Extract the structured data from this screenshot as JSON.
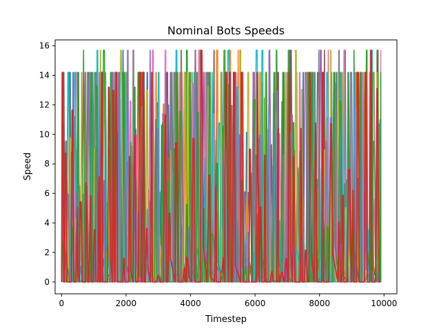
{
  "chart_data": {
    "type": "line",
    "title": "Nominal Bots Speeds",
    "xlabel": "Timestep",
    "ylabel": "Speed",
    "xlim": [
      -200,
      10400
    ],
    "ylim": [
      -0.8,
      16.4
    ],
    "x_ticks": [
      0,
      2000,
      4000,
      6000,
      8000,
      10000
    ],
    "y_ticks": [
      0,
      2,
      4,
      6,
      8,
      10,
      12,
      14,
      16
    ],
    "x_tick_labels": [
      "0",
      "2000",
      "4000",
      "6000",
      "8000",
      "10000"
    ],
    "y_tick_labels": [
      "0",
      "2",
      "4",
      "6",
      "8",
      "10",
      "12",
      "14",
      "16"
    ],
    "grid": false,
    "legend": "none",
    "x_range": [
      0,
      9900
    ],
    "speed_levels": [
      0,
      14.2,
      15.7
    ],
    "series": [
      {
        "color": "#1f77b4"
      },
      {
        "color": "#ff7f0e"
      },
      {
        "color": "#2ca02c"
      },
      {
        "color": "#8c564b"
      },
      {
        "color": "#e377c2"
      },
      {
        "color": "#7f7f7f"
      },
      {
        "color": "#bcbd22"
      },
      {
        "color": "#17becf"
      },
      {
        "color": "#9467bd"
      },
      {
        "color": "#2ca02c"
      },
      {
        "color": "#d62728"
      }
    ]
  }
}
